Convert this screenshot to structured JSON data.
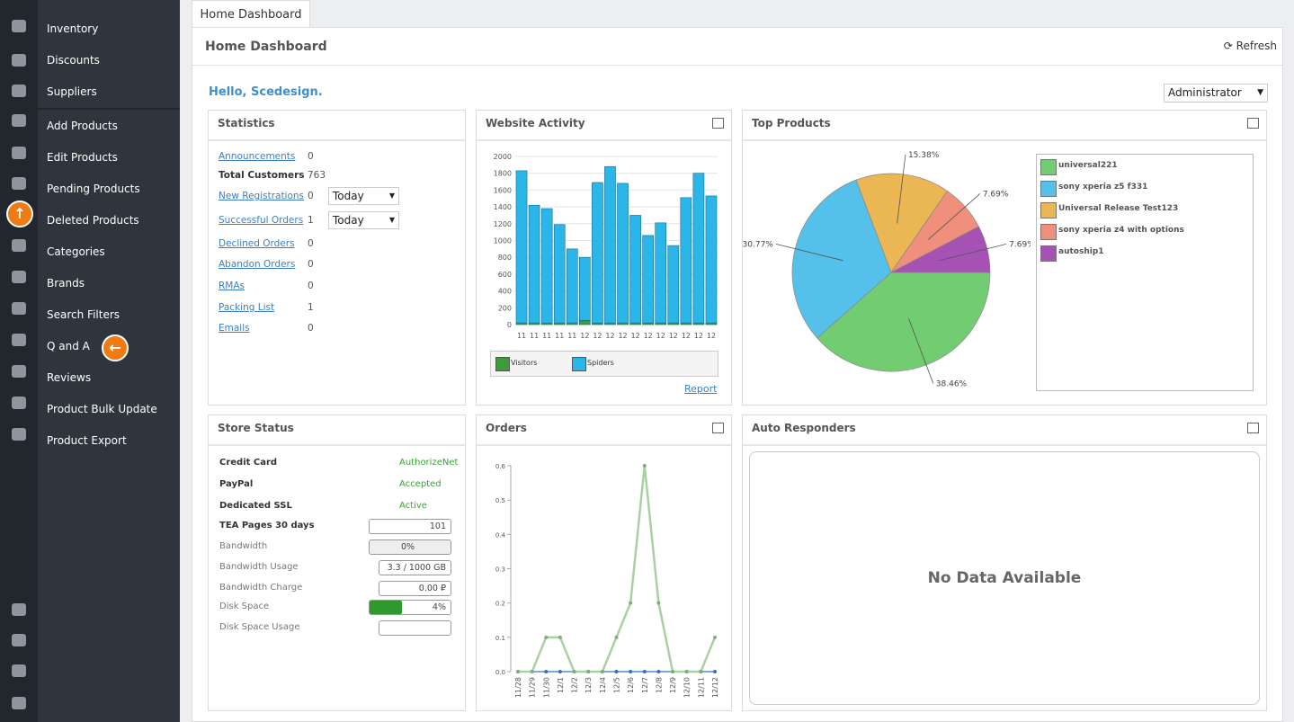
{
  "sidebar": {
    "menu": [
      "Inventory",
      "Discounts",
      "Suppliers",
      "Add Products",
      "Edit Products",
      "Pending Products",
      "Deleted Products",
      "Categories",
      "Brands",
      "Search Filters",
      "Q and A",
      "Reviews",
      "Product Bulk Update",
      "Product Export"
    ]
  },
  "tab": "Home Dashboard",
  "header": {
    "title": "Home Dashboard",
    "refresh": "Refresh"
  },
  "greeting": "Hello, Scedesign.",
  "role_select": "Administrator",
  "statistics": {
    "title": "Statistics",
    "select": "Today",
    "rows": [
      {
        "label": "Announcements",
        "value": 0,
        "link": true
      },
      {
        "label": "Total Customers",
        "value": 763,
        "link": false
      },
      {
        "label": "New Registrations",
        "value": 0,
        "link": true,
        "has_select": true
      },
      {
        "label": "Successful Orders",
        "value": 1,
        "link": true,
        "has_select": true
      },
      {
        "label": "Declined Orders",
        "value": 0,
        "link": true
      },
      {
        "label": "Abandon Orders",
        "value": 0,
        "link": true
      },
      {
        "label": "RMAs",
        "value": 0,
        "link": true
      },
      {
        "label": "Packing List",
        "value": 1,
        "link": true
      },
      {
        "label": "Emails",
        "value": 0,
        "link": true
      }
    ]
  },
  "store_status": {
    "title": "Store Status",
    "rows": [
      {
        "label": "Credit Card",
        "value": "AuthorizeNet",
        "style": "status"
      },
      {
        "label": "PayPal",
        "value": "Accepted",
        "style": "status"
      },
      {
        "label": "Dedicated SSL",
        "value": "Active",
        "style": "status"
      },
      {
        "label": "TEA Pages 30 days",
        "value": "101",
        "style": "box"
      },
      {
        "label": "Bandwidth",
        "value": "0%",
        "style": "center-box"
      },
      {
        "label": "Bandwidth Usage",
        "value": "3.3 / 1000 GB",
        "style": "box"
      },
      {
        "label": "Bandwidth Charge",
        "value": "0.00 ₽",
        "style": "box"
      },
      {
        "label": "Disk Space",
        "value": "4%",
        "style": "progress"
      },
      {
        "label": "Disk Space Usage",
        "value": "",
        "style": "box"
      }
    ]
  },
  "website_activity": {
    "type": "bar",
    "title": "Website Activity",
    "stacked": true,
    "categories": [
      "11",
      "11",
      "11",
      "11",
      "11",
      "12",
      "12",
      "12",
      "12",
      "12",
      "12",
      "12",
      "12",
      "12",
      "12",
      "12"
    ],
    "series": [
      {
        "name": "Visitors",
        "color": "#3d9b3d",
        "values": [
          20,
          20,
          20,
          20,
          20,
          50,
          20,
          20,
          20,
          20,
          20,
          20,
          20,
          20,
          20,
          20
        ]
      },
      {
        "name": "Spiders",
        "color": "#2bb6ea",
        "values": [
          1810,
          1400,
          1360,
          1170,
          880,
          750,
          1670,
          1860,
          1660,
          1280,
          1040,
          1190,
          920,
          1490,
          1780,
          1510
        ]
      }
    ],
    "ylim": [
      0,
      2000
    ],
    "yticks": [
      0,
      200,
      400,
      600,
      800,
      1000,
      1200,
      1400,
      1600,
      1800,
      2000
    ],
    "link": "Report"
  },
  "top_products": {
    "type": "pie",
    "title": "Top Products",
    "categories": [
      "universal221",
      "sony xperia z5 f331",
      "Universal Release Test123",
      "sony xperia z4 with options",
      "autoship1"
    ],
    "values": [
      38.46,
      30.77,
      15.38,
      7.69,
      7.69
    ],
    "value_labels": [
      "38.46%",
      "30.77%",
      "15.38%",
      "7.69%",
      "7.69%"
    ],
    "colors": [
      "#72cc72",
      "#55c0ea",
      "#ebb654",
      "#ef8f7c",
      "#a552b4"
    ]
  },
  "orders": {
    "type": "line",
    "title": "Orders",
    "categories": [
      "11/28",
      "11/29",
      "11/30",
      "12/1",
      "12/2",
      "12/3",
      "12/4",
      "12/5",
      "12/6",
      "12/7",
      "12/8",
      "12/9",
      "12/10",
      "12/11",
      "12/12"
    ],
    "series": [
      {
        "color": "#a9d0a2",
        "values": [
          0,
          0,
          0.1,
          0.1,
          0,
          0,
          0,
          0.1,
          0.2,
          0.6,
          0.2,
          0,
          0,
          0,
          0.1
        ]
      },
      {
        "color": "#4a8fd6",
        "values": [
          0,
          0,
          0,
          0,
          0,
          0,
          0,
          0,
          0,
          0,
          0,
          0,
          0,
          0,
          0
        ]
      }
    ],
    "ylim": [
      0,
      0.6
    ],
    "yticks": [
      {
        "value": 0,
        "label": "0.0"
      },
      0.1,
      0.2,
      0.3,
      0.4,
      0.5,
      0.6
    ]
  },
  "auto_responders": {
    "title": "Auto Responders",
    "empty": "No Data Available"
  }
}
